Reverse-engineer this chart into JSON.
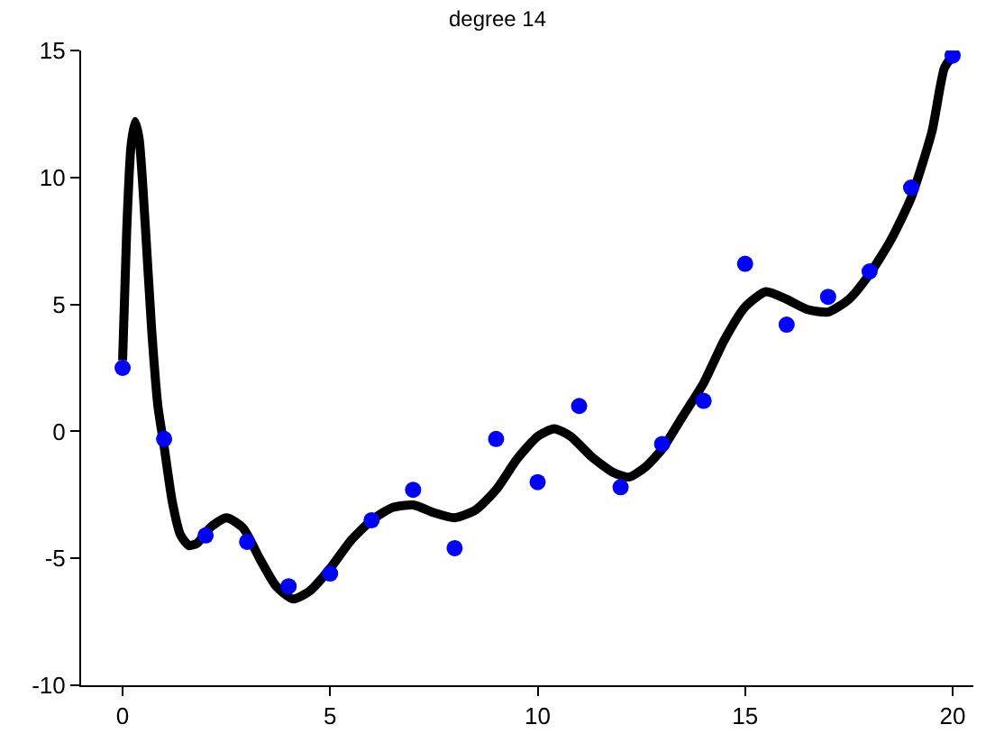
{
  "chart_data": {
    "type": "scatter",
    "title": "degree 14",
    "xlim": [
      -1,
      20.5
    ],
    "xticks": [
      0,
      5,
      10,
      15,
      20
    ],
    "ylim": [
      -10,
      15
    ],
    "yticks": [
      -10,
      -5,
      0,
      5,
      10,
      15
    ],
    "series": [
      {
        "color": "#0000ff",
        "marker": "circle",
        "x": [
          0,
          1,
          2,
          3,
          4,
          5,
          6,
          7,
          8,
          9,
          10,
          11,
          12,
          13,
          14,
          15,
          16,
          17,
          18,
          19,
          20
        ],
        "values": [
          2.5,
          -0.3,
          -4.1,
          -4.35,
          -6.1,
          -5.6,
          -3.5,
          -2.3,
          -4.6,
          -0.3,
          -2.0,
          1.0,
          -2.2,
          -0.5,
          1.2,
          6.6,
          4.2,
          5.3,
          6.3,
          9.6,
          14.8
        ]
      },
      {
        "type": "line",
        "color": "#000000",
        "marker": "none",
        "line_style": "solid",
        "x": [
          0,
          0.1,
          0.2,
          0.3,
          0.4,
          0.55,
          0.7,
          0.85,
          1.0,
          1.2,
          1.4,
          1.6,
          1.8,
          2.1,
          2.5,
          2.9,
          3.3,
          3.7,
          4.1,
          4.5,
          5,
          5.5,
          6,
          6.5,
          7,
          7.5,
          8,
          8.5,
          9,
          9.5,
          10,
          10.4,
          10.8,
          11.3,
          11.8,
          12.2,
          12.6,
          13,
          13.5,
          14,
          14.5,
          15,
          15.5,
          16,
          16.5,
          17,
          17.5,
          18,
          18.5,
          19,
          19.5,
          19.8,
          20
        ],
        "values": [
          2.8,
          8,
          11.2,
          12.2,
          11.5,
          8,
          4,
          1,
          -0.6,
          -2.8,
          -4.1,
          -4.5,
          -4.4,
          -3.8,
          -3.4,
          -3.8,
          -5.0,
          -6.1,
          -6.6,
          -6.3,
          -5.4,
          -4.3,
          -3.5,
          -3.0,
          -2.9,
          -3.2,
          -3.4,
          -3.1,
          -2.3,
          -1.1,
          -0.2,
          0.1,
          -0.2,
          -1.0,
          -1.6,
          -1.8,
          -1.4,
          -0.7,
          0.6,
          1.9,
          3.6,
          4.9,
          5.5,
          5.2,
          4.8,
          4.7,
          5.2,
          6.2,
          7.5,
          9.2,
          11.8,
          14.3,
          14.8
        ]
      }
    ]
  }
}
